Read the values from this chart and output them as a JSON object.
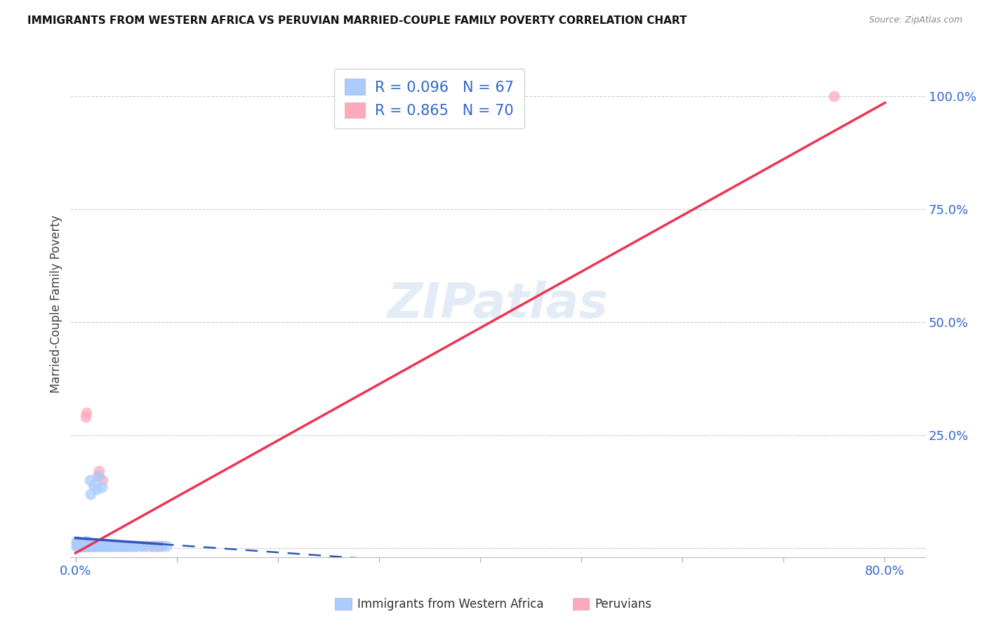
{
  "title": "IMMIGRANTS FROM WESTERN AFRICA VS PERUVIAN MARRIED-COUPLE FAMILY POVERTY CORRELATION CHART",
  "source": "Source: ZipAtlas.com",
  "ylabel": "Married-Couple Family Poverty",
  "ylim": [
    -0.02,
    1.1
  ],
  "xlim": [
    -0.005,
    0.84
  ],
  "ytick_vals": [
    0.0,
    0.25,
    0.5,
    0.75,
    1.0
  ],
  "ytick_labels": [
    "",
    "25.0%",
    "50.0%",
    "75.0%",
    "100.0%"
  ],
  "xtick_vals": [
    0.0,
    0.1,
    0.2,
    0.3,
    0.4,
    0.5,
    0.6,
    0.7,
    0.8
  ],
  "xtick_labels": [
    "0.0%",
    "",
    "",
    "",
    "",
    "",
    "",
    "",
    "80.0%"
  ],
  "blue_color": "#aaccff",
  "pink_color": "#ffaabb",
  "blue_line_color": "#3355bb",
  "pink_line_color": "#ee3355",
  "R_blue": 0.096,
  "N_blue": 67,
  "R_pink": 0.865,
  "N_pink": 70,
  "legend_label_blue": "Immigrants from Western Africa",
  "legend_label_pink": "Peruvians",
  "watermark": "ZIPatlas",
  "blue_scatter_x": [
    0.001,
    0.001,
    0.002,
    0.002,
    0.002,
    0.003,
    0.003,
    0.003,
    0.004,
    0.004,
    0.005,
    0.005,
    0.005,
    0.006,
    0.006,
    0.007,
    0.007,
    0.008,
    0.008,
    0.009,
    0.009,
    0.01,
    0.01,
    0.011,
    0.011,
    0.012,
    0.012,
    0.013,
    0.013,
    0.014,
    0.014,
    0.015,
    0.015,
    0.016,
    0.017,
    0.018,
    0.019,
    0.02,
    0.021,
    0.022,
    0.023,
    0.024,
    0.025,
    0.026,
    0.027,
    0.028,
    0.03,
    0.032,
    0.033,
    0.035,
    0.037,
    0.04,
    0.042,
    0.044,
    0.046,
    0.048,
    0.05,
    0.053,
    0.055,
    0.058,
    0.06,
    0.065,
    0.07,
    0.075,
    0.08,
    0.085,
    0.09
  ],
  "blue_scatter_y": [
    0.005,
    0.015,
    0.005,
    0.01,
    0.005,
    0.005,
    0.01,
    0.005,
    0.005,
    0.008,
    0.005,
    0.012,
    0.005,
    0.005,
    0.008,
    0.005,
    0.01,
    0.005,
    0.01,
    0.005,
    0.008,
    0.005,
    0.01,
    0.005,
    0.015,
    0.005,
    0.012,
    0.005,
    0.01,
    0.005,
    0.15,
    0.005,
    0.12,
    0.005,
    0.005,
    0.14,
    0.005,
    0.005,
    0.13,
    0.005,
    0.16,
    0.005,
    0.005,
    0.135,
    0.005,
    0.005,
    0.005,
    0.005,
    0.005,
    0.005,
    0.005,
    0.005,
    0.005,
    0.005,
    0.005,
    0.005,
    0.005,
    0.005,
    0.005,
    0.005,
    0.005,
    0.005,
    0.005,
    0.005,
    0.005,
    0.005,
    0.005
  ],
  "pink_scatter_x": [
    0.001,
    0.001,
    0.002,
    0.002,
    0.002,
    0.003,
    0.003,
    0.004,
    0.004,
    0.005,
    0.005,
    0.005,
    0.006,
    0.006,
    0.007,
    0.007,
    0.008,
    0.008,
    0.009,
    0.009,
    0.01,
    0.01,
    0.011,
    0.011,
    0.012,
    0.013,
    0.013,
    0.014,
    0.014,
    0.015,
    0.015,
    0.016,
    0.017,
    0.018,
    0.019,
    0.02,
    0.021,
    0.022,
    0.023,
    0.024,
    0.025,
    0.026,
    0.027,
    0.028,
    0.029,
    0.03,
    0.031,
    0.032,
    0.033,
    0.035,
    0.036,
    0.038,
    0.04,
    0.042,
    0.044,
    0.046,
    0.048,
    0.05,
    0.052,
    0.055,
    0.058,
    0.06,
    0.065,
    0.07,
    0.075,
    0.078,
    0.08,
    0.082,
    0.085,
    0.75
  ],
  "pink_scatter_y": [
    0.005,
    0.01,
    0.005,
    0.005,
    0.008,
    0.005,
    0.008,
    0.005,
    0.005,
    0.005,
    0.008,
    0.005,
    0.005,
    0.005,
    0.005,
    0.005,
    0.005,
    0.005,
    0.005,
    0.005,
    0.005,
    0.29,
    0.005,
    0.3,
    0.005,
    0.005,
    0.005,
    0.005,
    0.005,
    0.005,
    0.005,
    0.005,
    0.005,
    0.005,
    0.005,
    0.005,
    0.005,
    0.16,
    0.17,
    0.005,
    0.005,
    0.005,
    0.15,
    0.005,
    0.005,
    0.005,
    0.005,
    0.005,
    0.005,
    0.005,
    0.005,
    0.005,
    0.005,
    0.005,
    0.005,
    0.005,
    0.005,
    0.005,
    0.005,
    0.005,
    0.005,
    0.005,
    0.005,
    0.005,
    0.005,
    0.005,
    0.005,
    0.005,
    0.005,
    1.0
  ],
  "blue_line_x0": 0.0,
  "blue_line_x_solid_end": 0.085,
  "blue_line_x_dashed_end": 0.8,
  "pink_line_x0": 0.0,
  "pink_line_x1": 0.8
}
